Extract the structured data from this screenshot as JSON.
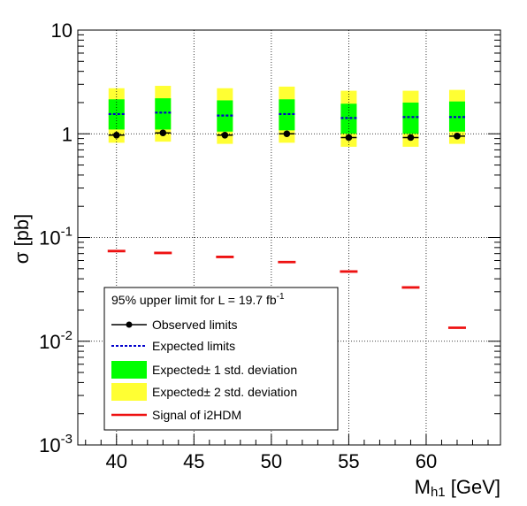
{
  "chart_data": {
    "type": "scatter",
    "title": "",
    "xlabel_main": "M",
    "xlabel_sub": "h1",
    "xlabel_unit": " [GeV]",
    "ylabel": "σ [pb]",
    "xlim": [
      37.5,
      64.8
    ],
    "ylim": [
      0.001,
      10
    ],
    "yscale": "log",
    "grid": true,
    "x_ticks": [
      40,
      45,
      50,
      55,
      60
    ],
    "x_tick_labels": [
      "40",
      "45",
      "50",
      "55",
      "60"
    ],
    "y_tick_labels": [
      {
        "value": 10,
        "base": "10",
        "exp": ""
      },
      {
        "value": 1,
        "base": "1",
        "exp": ""
      },
      {
        "value": 0.1,
        "base": "10",
        "exp": "-1"
      },
      {
        "value": 0.01,
        "base": "10",
        "exp": "-2"
      },
      {
        "value": 0.001,
        "base": "10",
        "exp": "-3"
      }
    ],
    "x": [
      40,
      43,
      47,
      51,
      55,
      59,
      62
    ],
    "series": [
      {
        "name": "Observed limits",
        "color": "#000000",
        "values": [
          0.97,
          1.02,
          0.97,
          1.0,
          0.92,
          0.92,
          0.95
        ]
      },
      {
        "name": "Expected limits",
        "color": "#0000cc",
        "values": [
          1.55,
          1.6,
          1.5,
          1.55,
          1.42,
          1.45,
          1.45
        ]
      },
      {
        "name": "Expected± 1 std. deviation",
        "color": "#00ff00",
        "low": [
          1.1,
          1.1,
          1.05,
          1.08,
          1.0,
          1.0,
          1.05
        ],
        "high": [
          2.15,
          2.2,
          2.1,
          2.15,
          1.95,
          2.0,
          2.05
        ]
      },
      {
        "name": "Expected± 2 std. deviation",
        "color": "#ffff33",
        "low": [
          0.82,
          0.84,
          0.8,
          0.82,
          0.75,
          0.75,
          0.8
        ],
        "high": [
          2.75,
          2.9,
          2.75,
          2.85,
          2.6,
          2.6,
          2.65
        ]
      },
      {
        "name": "Signal of i2HDM",
        "color": "#ee1111",
        "values": [
          0.074,
          0.071,
          0.065,
          0.058,
          0.047,
          0.033,
          0.0135
        ]
      }
    ],
    "legend": {
      "placement": "bottom-left",
      "header_prefix": "95% upper limit for L = 19.7 fb",
      "header_sup": "-1",
      "entries": [
        "Observed limits",
        "Expected limits",
        "Expected± 1 std. deviation",
        "Expected± 2 std. deviation",
        "Signal of i2HDM"
      ]
    }
  }
}
